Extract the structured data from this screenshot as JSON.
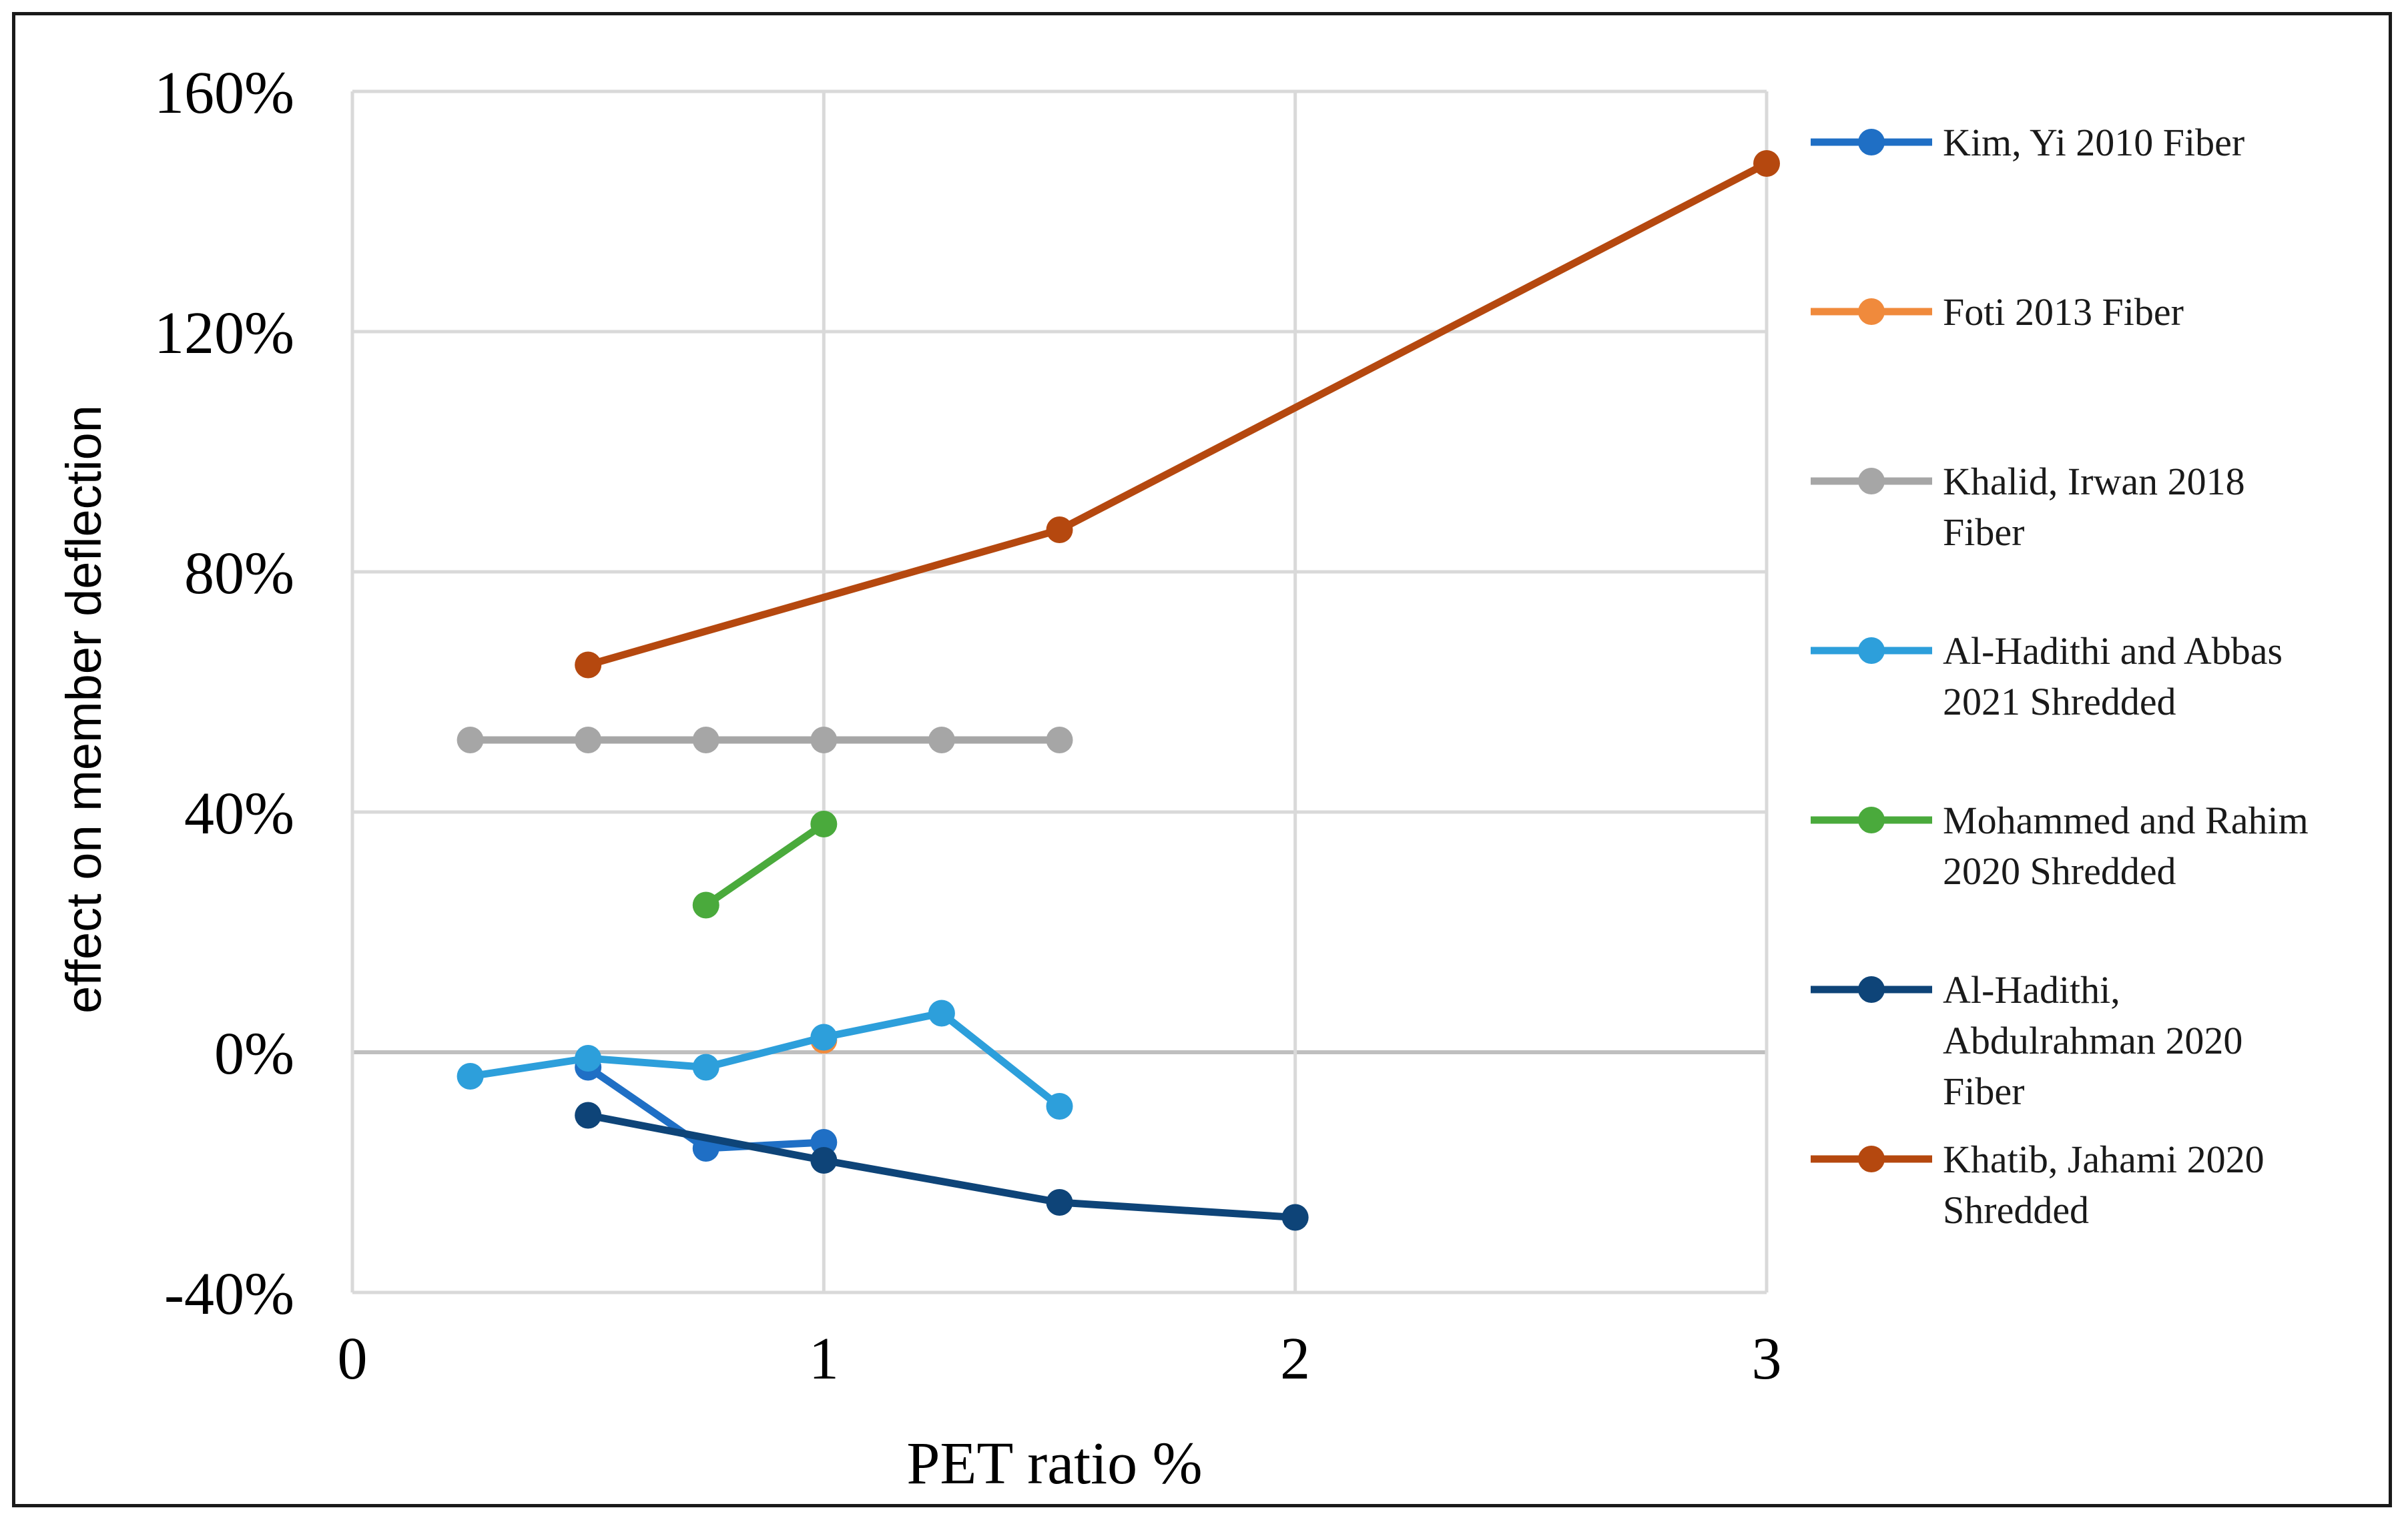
{
  "chart_data": {
    "type": "line",
    "title": "",
    "xlabel": "PET ratio %",
    "ylabel": "effect on member deflection",
    "xlim": [
      0,
      3
    ],
    "ylim": [
      -40,
      160
    ],
    "x_ticks": [
      "0",
      "1",
      "2",
      "3"
    ],
    "y_ticks": [
      "-40%",
      "0%",
      "40%",
      "80%",
      "120%",
      "160%"
    ],
    "grid": true,
    "legend_position": "right",
    "series": [
      {
        "name": "Kim, Yi 2010 Fiber",
        "legend_lines": [
          "Kim, Yi 2010 Fiber"
        ],
        "color": "#1f6fc5",
        "x": [
          0.5,
          0.75,
          1
        ],
        "y": [
          -2.5,
          -16,
          -15
        ]
      },
      {
        "name": "Foti 2013 Fiber",
        "legend_lines": [
          "Foti 2013 Fiber"
        ],
        "color": "#f08a3c",
        "x": [
          1
        ],
        "y": [
          2
        ]
      },
      {
        "name": "Khalid, Irwan 2018 Fiber",
        "legend_lines": [
          "Khalid, Irwan 2018",
          "Fiber"
        ],
        "color": "#a6a6a6",
        "x": [
          0.25,
          0.5,
          0.75,
          1,
          1.25,
          1.5
        ],
        "y": [
          52,
          52,
          52,
          52,
          52,
          52
        ]
      },
      {
        "name": "Al-Hadithi and Abbas 2021 Shredded",
        "legend_lines": [
          "Al-Hadithi and Abbas",
          "2021 Shredded"
        ],
        "color": "#2d9fdb",
        "x": [
          0.25,
          0.5,
          0.75,
          1,
          1.25,
          1.5
        ],
        "y": [
          -4,
          -1,
          -2.5,
          2.5,
          6.5,
          -9
        ]
      },
      {
        "name": "Mohammed and Rahim 2020 Shredded",
        "legend_lines": [
          "Mohammed and Rahim",
          "2020 Shredded"
        ],
        "color": "#4aaa3c",
        "x": [
          0.75,
          1
        ],
        "y": [
          24.5,
          38
        ]
      },
      {
        "name": "Al-Hadithi, Abdulrahman 2020 Fiber",
        "legend_lines": [
          "Al-Hadithi,",
          "Abdulrahman 2020",
          "Fiber"
        ],
        "color": "#0e4478",
        "x": [
          0.5,
          1,
          1.5,
          2
        ],
        "y": [
          -10.5,
          -18,
          -25,
          -27.5
        ]
      },
      {
        "name": "Khatib, Jahami 2020 Shredded",
        "legend_lines": [
          "Khatib, Jahami 2020",
          "Shredded"
        ],
        "color": "#b5480f",
        "x": [
          0.5,
          1.5,
          3
        ],
        "y": [
          64.5,
          87,
          148
        ]
      }
    ]
  }
}
